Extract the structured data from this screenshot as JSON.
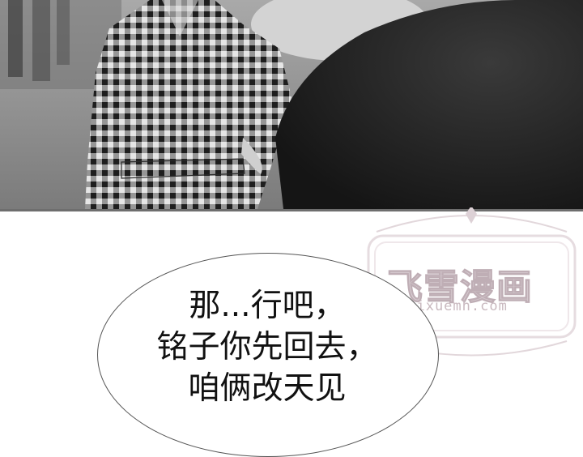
{
  "speech_bubble": {
    "lines": [
      "那...行吧，",
      "铭子你先回去，",
      "咱俩改天见"
    ]
  },
  "watermark": {
    "title": "飞雪漫画",
    "url": "feixuemh.com"
  },
  "colors": {
    "panel_grey": "#8d8d8d",
    "gingham_dark": "#1e1e1e",
    "gingham_light": "#e6e6e6",
    "watermark_pink": "#d8cdd2"
  }
}
